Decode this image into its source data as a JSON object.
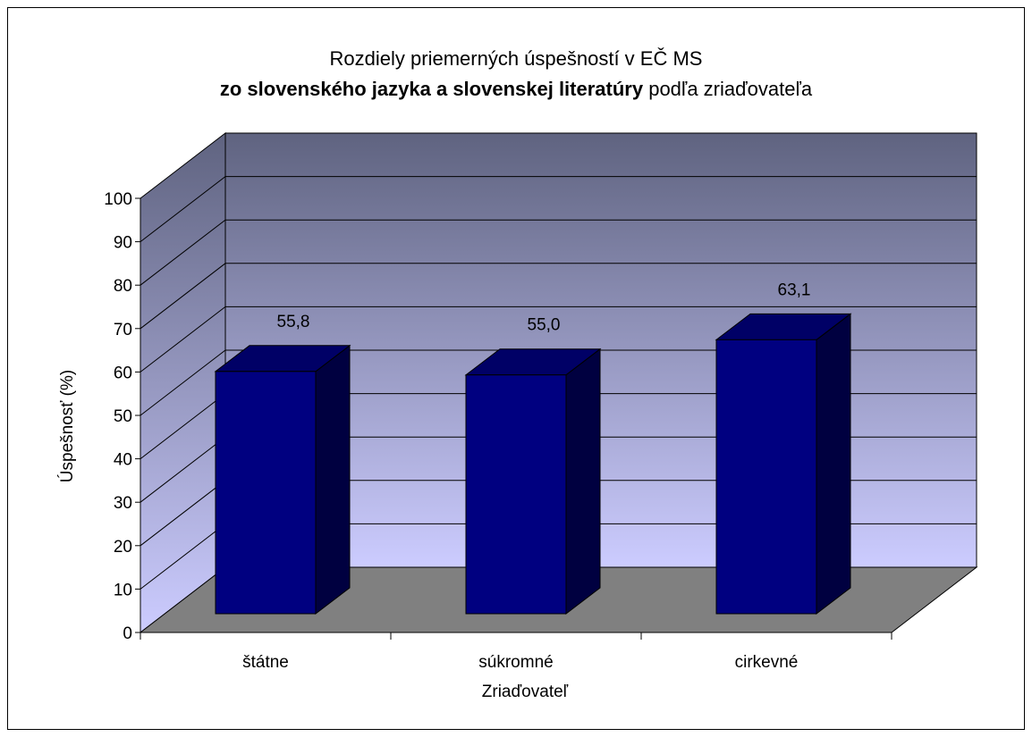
{
  "chart_data": {
    "type": "bar",
    "title_line1": "Rozdiely priemerných úspešností v EČ MS",
    "title_line2_bold": "zo slovenského jazyka a slovenskej literatúry",
    "title_line2_rest": " podľa zriaďovateľa",
    "xlabel": "Zriaďovateľ",
    "ylabel": "Úspešnosť (%)",
    "categories": [
      "štátne",
      "súkromné",
      "cirkevné"
    ],
    "values": [
      55.8,
      55.0,
      63.1
    ],
    "value_labels": [
      "55,8",
      "55,0",
      "63,1"
    ],
    "ylim": [
      0,
      100
    ],
    "yticks": [
      "0",
      "10",
      "20",
      "30",
      "40",
      "50",
      "60",
      "70",
      "80",
      "90",
      "100"
    ],
    "grid": true,
    "legend": "none",
    "colors": {
      "bar_front": "#000080",
      "bar_top": "#000066",
      "bar_side": "#000040",
      "floor": "#808080",
      "wall_top": "#5f6380",
      "wall_bottom": "#ccccff"
    }
  }
}
